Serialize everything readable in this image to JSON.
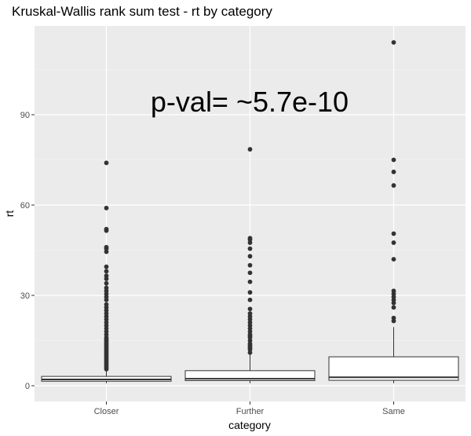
{
  "chart_data": {
    "type": "boxplot",
    "title": "Kruskal-Wallis rank sum test - rt by category",
    "annotation": "p-val= ~5.7e-10",
    "xlabel": "category",
    "ylabel": "rt",
    "categories": [
      "Closer",
      "Further",
      "Same"
    ],
    "ylim": [
      -5,
      120
    ],
    "yticks": [
      0,
      30,
      60,
      90
    ],
    "grid": true,
    "boxes": [
      {
        "category": "Closer",
        "lower_whisker": 0.8,
        "q1": 1.5,
        "median": 2.1,
        "q3": 3.1,
        "upper_whisker": 5.5,
        "outliers": [
          5.5,
          6,
          6.5,
          7,
          7.5,
          8,
          8.5,
          9,
          9.5,
          10,
          10.5,
          11,
          11.5,
          12,
          12.5,
          13,
          13.5,
          14,
          14.5,
          15,
          15.5,
          16,
          17,
          18,
          19,
          20,
          21,
          22,
          23,
          24,
          25,
          26,
          27,
          28.5,
          29.5,
          30.5,
          31.5,
          32.5,
          34,
          35.5,
          36.5,
          38,
          39.5,
          44.5,
          45.5,
          46,
          51.5,
          52,
          59,
          74
        ]
      },
      {
        "category": "Further",
        "lower_whisker": 0.8,
        "q1": 1.7,
        "median": 2.3,
        "q3": 5.0,
        "upper_whisker": 10.5,
        "outliers": [
          11,
          12,
          12.5,
          13,
          13.5,
          14,
          15,
          16,
          16.5,
          17,
          18,
          19,
          20,
          21,
          22,
          23,
          24,
          25.5,
          28.5,
          31,
          34.5,
          37.5,
          40,
          43,
          45.5,
          47.5,
          48.5,
          49,
          78.5
        ]
      },
      {
        "category": "Same",
        "lower_whisker": 0.8,
        "q1": 1.8,
        "median": 2.8,
        "q3": 9.6,
        "upper_whisker": 19.5,
        "outliers": [
          21.5,
          22.5,
          26,
          27.5,
          28.5,
          29.5,
          30.5,
          31.5,
          42,
          47.5,
          50.5,
          66.5,
          71,
          75,
          114
        ]
      }
    ]
  }
}
